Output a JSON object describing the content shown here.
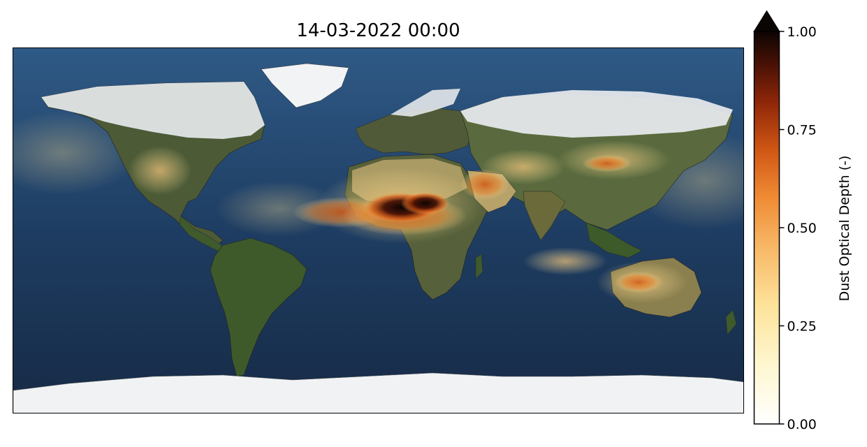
{
  "title": "14-03-2022 00:00",
  "map": {
    "projection": "plate-carree",
    "extent_lon": [
      -180,
      180
    ],
    "extent_lat": [
      -90,
      90
    ],
    "basemap": "blue-marble",
    "overlay_variable": "dust optical depth"
  },
  "colorbar": {
    "label": "Dust Optical Depth (-)",
    "min": 0.0,
    "max": 1.0,
    "extend": "max",
    "ticks": [
      {
        "value": 0.0,
        "label": "0.00"
      },
      {
        "value": 0.25,
        "label": "0.25"
      },
      {
        "value": 0.5,
        "label": "0.50"
      },
      {
        "value": 0.75,
        "label": "0.75"
      },
      {
        "value": 1.0,
        "label": "1.00"
      }
    ],
    "colormap_stops": [
      {
        "value": 0.0,
        "color": "#ffffff"
      },
      {
        "value": 0.15,
        "color": "#fff7d0"
      },
      {
        "value": 0.3,
        "color": "#fde39a"
      },
      {
        "value": 0.45,
        "color": "#f7b867"
      },
      {
        "value": 0.58,
        "color": "#ef8a33"
      },
      {
        "value": 0.7,
        "color": "#cf5614"
      },
      {
        "value": 0.82,
        "color": "#8e2608"
      },
      {
        "value": 0.92,
        "color": "#461005"
      },
      {
        "value": 1.0,
        "color": "#0b0503"
      }
    ]
  },
  "colors": {
    "ocean": "#1f3d63",
    "ocean_dark": "#14253d",
    "land": "#3e4a2a",
    "ice": "#eef0f2",
    "desert": "#b9a56b"
  }
}
